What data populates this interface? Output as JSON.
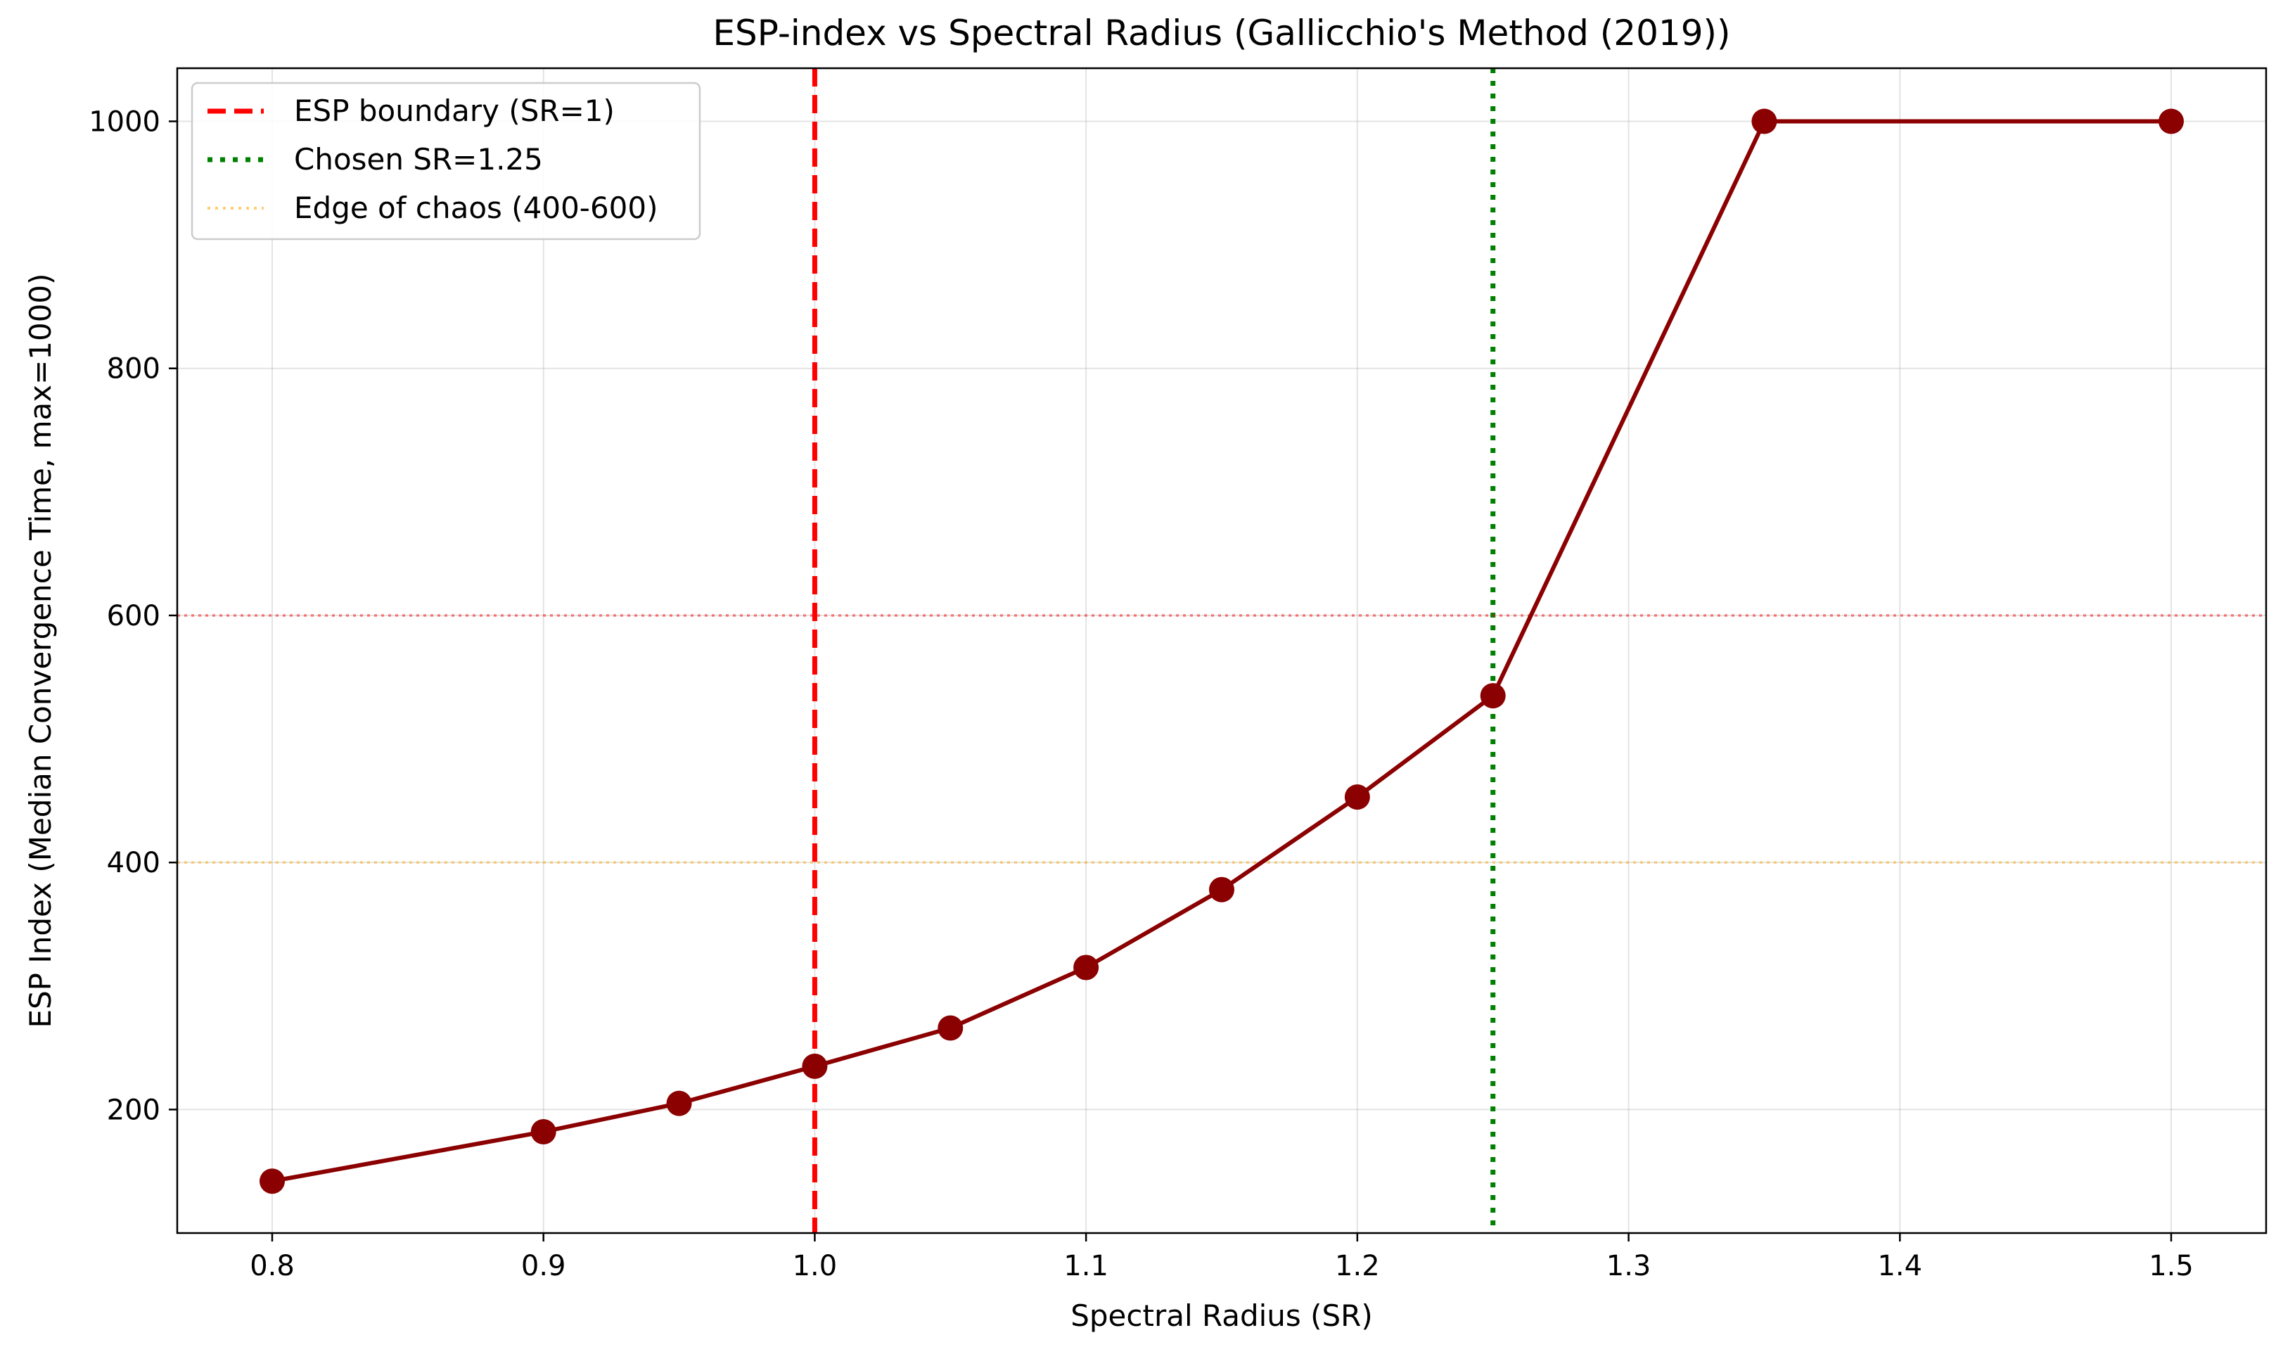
{
  "chart_data": {
    "type": "line",
    "title": "ESP-index vs Spectral Radius (Gallicchio's Method (2019))",
    "xlabel": "Spectral Radius (SR)",
    "ylabel": "ESP Index (Median Convergence Time, max=1000)",
    "xlim": [
      0.765,
      1.535
    ],
    "ylim": [
      100,
      1043
    ],
    "xticks": [
      0.8,
      0.9,
      1.0,
      1.1,
      1.2,
      1.3,
      1.4,
      1.5
    ],
    "xtick_labels": [
      "0.8",
      "0.9",
      "1.0",
      "1.1",
      "1.2",
      "1.3",
      "1.4",
      "1.5"
    ],
    "yticks": [
      200,
      400,
      600,
      800,
      1000
    ],
    "ytick_labels": [
      "200",
      "400",
      "600",
      "800",
      "1000"
    ],
    "grid": true,
    "legend_position": "top-left",
    "series": [
      {
        "color": "#8b0000",
        "x": [
          0.8,
          0.9,
          0.95,
          1.0,
          1.05,
          1.1,
          1.15,
          1.2,
          1.25,
          1.35,
          1.5
        ],
        "y": [
          142,
          182,
          205,
          235,
          266,
          315,
          378,
          453,
          535,
          1000,
          1000
        ]
      }
    ],
    "reference_lines": [
      {
        "orientation": "vertical",
        "value": 1.0,
        "style": "dashed",
        "color": "#ff0000",
        "legend": "ESP boundary (SR=1)"
      },
      {
        "orientation": "vertical",
        "value": 1.25,
        "style": "dotted",
        "color": "#008000",
        "legend": "Chosen SR=1.25"
      },
      {
        "orientation": "horizontal",
        "value": 400,
        "style": "dotted",
        "color": "#ffa500",
        "legend": "Edge of chaos (400-600)"
      },
      {
        "orientation": "horizontal",
        "value": 600,
        "style": "dotted",
        "color": "#ff0000",
        "legend": ""
      }
    ]
  }
}
